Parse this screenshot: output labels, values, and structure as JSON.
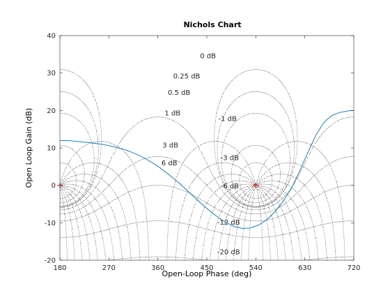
{
  "chart_data": {
    "type": "line",
    "title": "Nichols Chart",
    "xlabel": "Open-Loop Phase (deg)",
    "ylabel": "Open Loop Gain (dB)",
    "xlim": [
      180,
      720
    ],
    "ylim": [
      -20,
      40
    ],
    "xticks": [
      "180",
      "270",
      "360",
      "450",
      "540",
      "630",
      "720"
    ],
    "yticks": [
      "-20",
      "-10",
      "0",
      "10",
      "20",
      "30",
      "40"
    ],
    "grid": true,
    "grid_type": "nichols",
    "grid_labels": [
      "0 dB",
      "0.25 dB",
      "0.5 dB",
      "1 dB",
      "3 dB",
      "6 dB",
      "-1 dB",
      "-3 dB",
      "-6 dB",
      "-12 dB",
      "-20 dB"
    ],
    "critical_points": [
      {
        "x": 180,
        "y": 0
      },
      {
        "x": 540,
        "y": 0
      }
    ],
    "series": [
      {
        "x": [
          180,
          200,
          220,
          240,
          260,
          280,
          300,
          320,
          340,
          360,
          380,
          400,
          420,
          440,
          460,
          480,
          500,
          515,
          530,
          545,
          560,
          575,
          590,
          605,
          620,
          635,
          650,
          665,
          680,
          695,
          710,
          720
        ],
        "y": [
          12,
          11.9,
          11.6,
          11.3,
          10.9,
          10.3,
          9.5,
          8.4,
          6.9,
          5.1,
          2.9,
          0.5,
          -2.2,
          -4.9,
          -7.4,
          -9.5,
          -11,
          -11.5,
          -11.4,
          -10.6,
          -9.2,
          -7.1,
          -4.3,
          -0.9,
          3.6,
          8.6,
          13.3,
          16.8,
          18.7,
          19.5,
          19.9,
          20
        ]
      }
    ],
    "colors": {
      "series": "#0072BD",
      "grid": "#262626",
      "marker": "#ff0000"
    }
  }
}
